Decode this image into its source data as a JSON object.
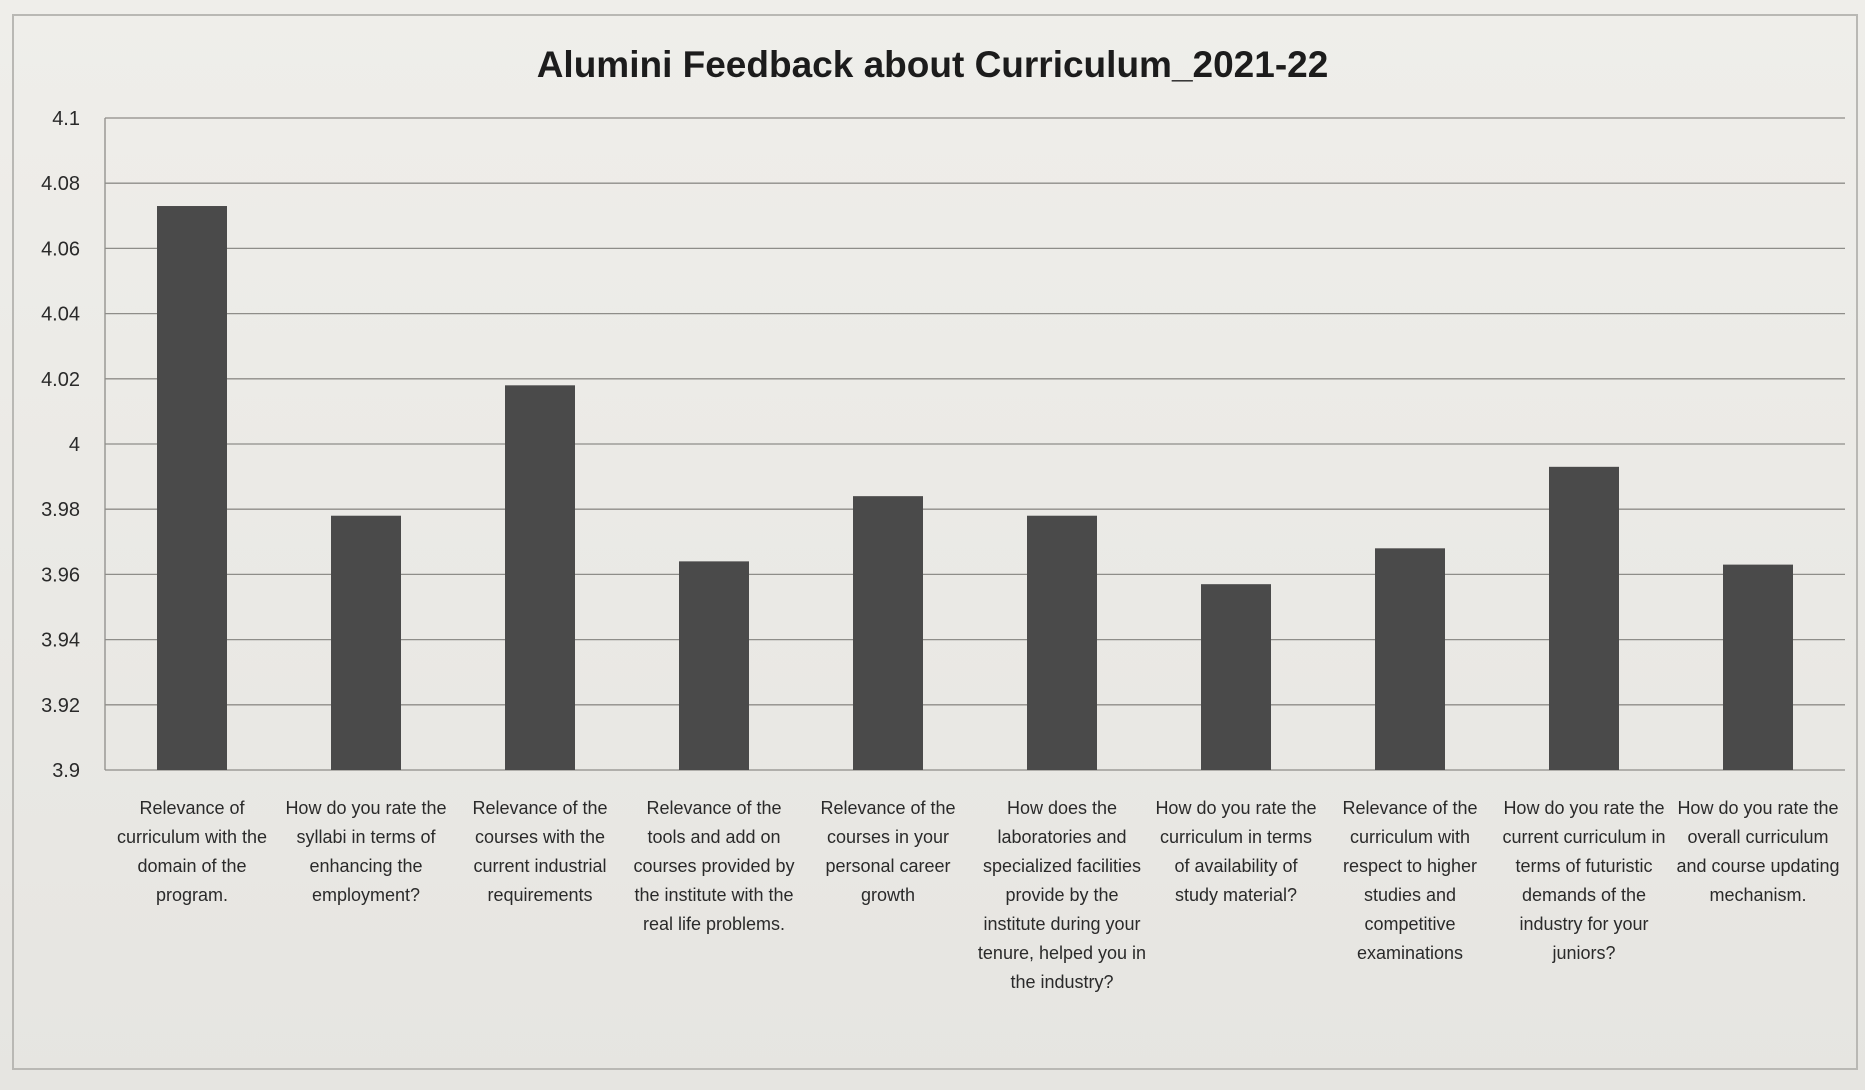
{
  "chart_data": {
    "type": "bar",
    "title": "Alumini Feedback about Curriculum_2021-22",
    "xlabel": "",
    "ylabel": "",
    "ylim": [
      3.9,
      4.1
    ],
    "yticks": [
      "4.1",
      "4.08",
      "4.06",
      "4.04",
      "4.02",
      "4",
      "3.98",
      "3.96",
      "3.94",
      "3.92",
      "3.9"
    ],
    "grid": true,
    "bar_color": "#4a4a4a",
    "categories": [
      "Relevance of curriculum with the domain of the program.",
      "How do you rate the syllabi in terms of enhancing the employment?",
      "Relevance of the courses with the current industrial requirements",
      "Relevance of the tools and add on courses provided by the institute with the real life problems.",
      "Relevance of the courses in your personal career growth",
      "How does the laboratories and specialized facilities provide by the institute during your tenure, helped you in the industry?",
      "How do you rate the curriculum in terms of availability of study material?",
      "Relevance of the curriculum with respect to higher studies and competitive examinations",
      "How do you rate the current curriculum in terms of futuristic demands of the industry for your juniors?",
      "How do you rate the overall curriculum and course updating mechanism."
    ],
    "values": [
      4.073,
      3.978,
      4.018,
      3.964,
      3.984,
      3.978,
      3.957,
      3.968,
      3.993,
      3.963
    ]
  }
}
